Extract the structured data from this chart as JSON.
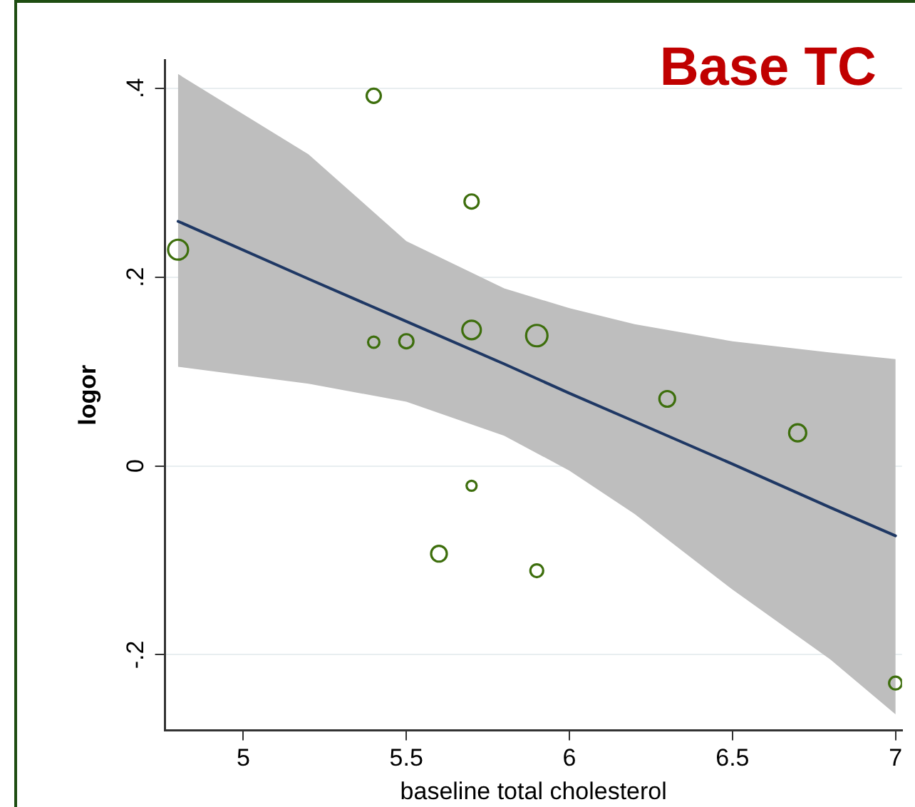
{
  "chart_data": {
    "type": "bubble",
    "title": "Base TC",
    "xlabel": "baseline total cholesterol",
    "ylabel": "logor",
    "xlim": [
      4.76,
      7.02
    ],
    "xticks": [
      5,
      5.5,
      6,
      6.5,
      7
    ],
    "ylim": [
      -0.28,
      0.43
    ],
    "yticks": [
      {
        "value": -0.2,
        "label": "-.2"
      },
      0,
      {
        "value": 0.2,
        "label": ".2"
      },
      {
        "value": 0.4,
        "label": ".4"
      }
    ],
    "grid": "y",
    "legend": false,
    "series": [
      {
        "color": "#3d6e0c",
        "x": [
          4.8,
          5.4,
          5.4,
          5.5,
          5.7,
          5.7,
          5.9,
          5.7,
          5.6,
          5.9,
          6.3,
          6.7,
          7.0
        ],
        "values": [
          0.229,
          0.392,
          0.131,
          0.132,
          0.28,
          0.144,
          0.138,
          -0.021,
          -0.093,
          -0.111,
          0.071,
          0.035,
          -0.23
        ],
        "sizes": [
          0.87,
          0.44,
          0.28,
          0.44,
          0.44,
          0.75,
          1,
          0.22,
          0.54,
          0.36,
          0.54,
          0.64,
          0.36
        ]
      },
      {
        "type": "line",
        "color": "#1f3864",
        "x": [
          4.8,
          5.2,
          5.5,
          5.8,
          6.0,
          6.2,
          6.5,
          6.8,
          7.0
        ],
        "values": [
          0.259,
          0.198,
          0.153,
          0.108,
          0.077,
          0.047,
          0.002,
          -0.044,
          -0.074
        ],
        "upper": [
          0.415,
          0.33,
          0.238,
          0.188,
          0.167,
          0.15,
          0.132,
          0.12,
          0.113
        ],
        "lower": [
          0.105,
          0.087,
          0.068,
          0.032,
          -0.005,
          -0.051,
          -0.131,
          -0.205,
          -0.263
        ]
      }
    ]
  }
}
